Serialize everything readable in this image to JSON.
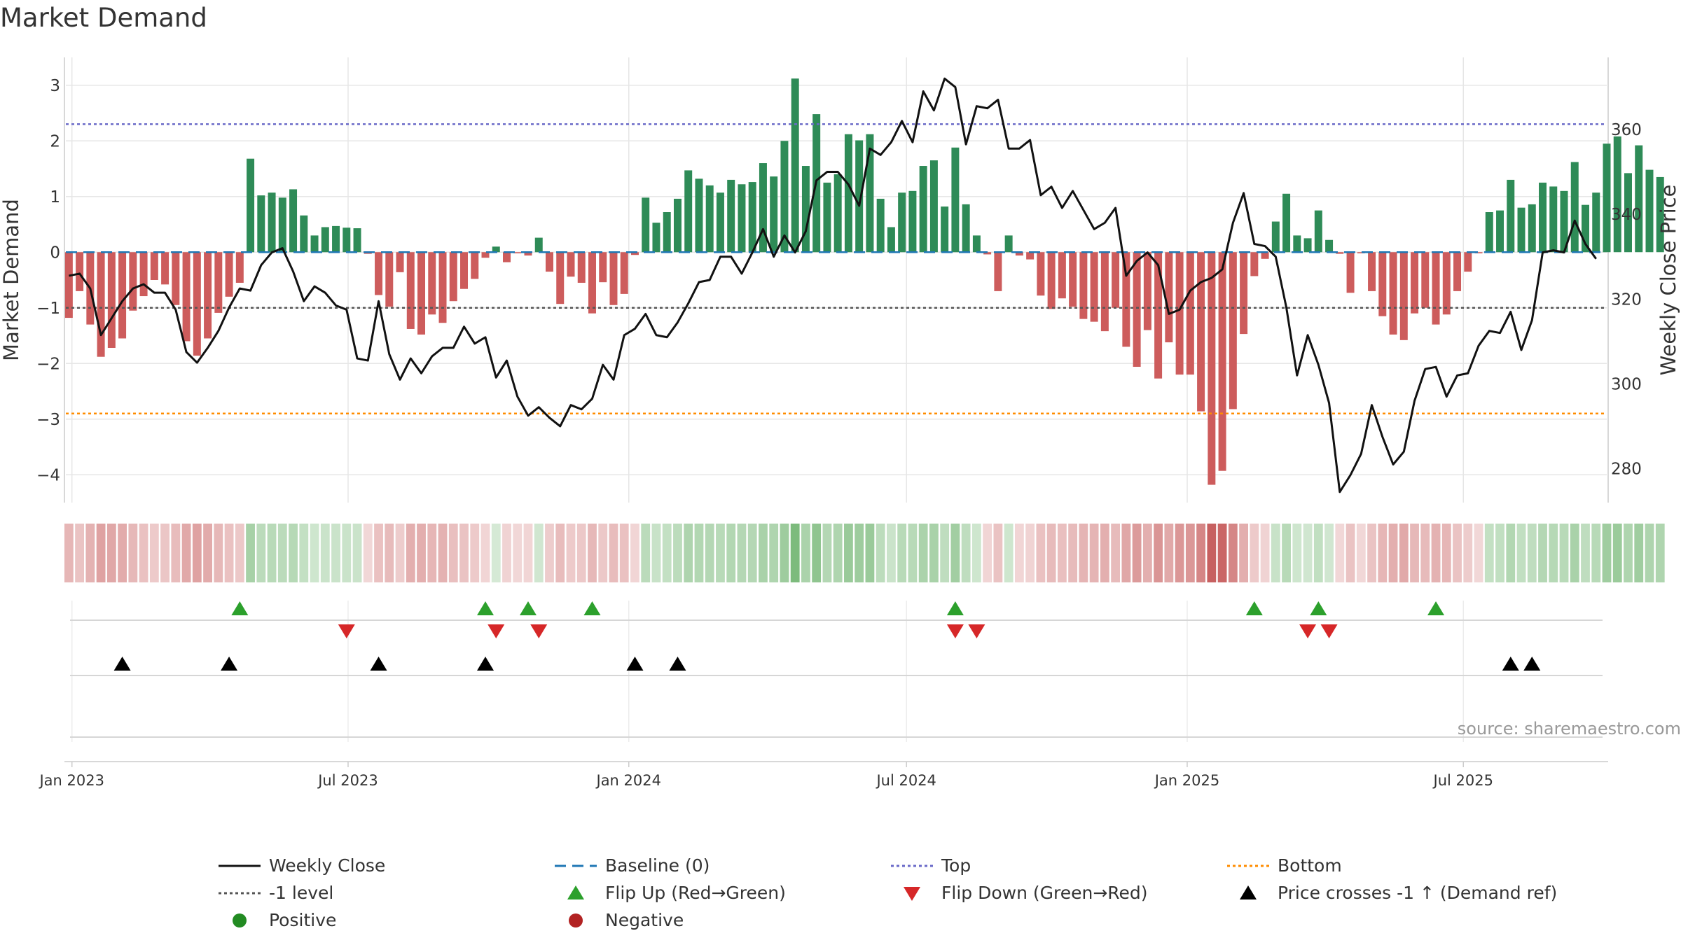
{
  "chart_data": {
    "type": "bar",
    "title": "Market Demand",
    "ylabel": "Market Demand",
    "y2label": "Weekly Close Price",
    "ylim": [
      -4.5,
      3.5
    ],
    "y2lim": [
      272,
      377
    ],
    "yticks": [
      3,
      2,
      1,
      0,
      -1,
      -2,
      -3,
      -4
    ],
    "y2ticks": [
      360,
      340,
      320,
      300,
      280
    ],
    "x_start": "2022-12-28",
    "x_end": "2025-10-03",
    "xticks": [
      {
        "label": "Jan 2023",
        "date": "2023-01-01"
      },
      {
        "label": "Jul 2023",
        "date": "2023-07-01"
      },
      {
        "label": "Jan 2024",
        "date": "2024-01-01"
      },
      {
        "label": "Jul 2024",
        "date": "2024-07-01"
      },
      {
        "label": "Jan 2025",
        "date": "2025-01-01"
      },
      {
        "label": "Jul 2025",
        "date": "2025-07-01"
      }
    ],
    "levels": {
      "top": 2.3,
      "minus_one": -1,
      "bottom": -2.9,
      "baseline": 0
    },
    "series": [
      {
        "name": "Market Demand",
        "start_date": "2022-12-30",
        "interval_days": 7,
        "values": [
          -1.18,
          -0.7,
          -1.3,
          -1.88,
          -1.72,
          -1.55,
          -1.05,
          -0.79,
          -0.5,
          -0.58,
          -0.95,
          -1.6,
          -1.86,
          -1.55,
          -1.09,
          -0.8,
          -0.55,
          1.68,
          1.02,
          1.07,
          0.98,
          1.13,
          0.66,
          0.3,
          0.45,
          0.47,
          0.44,
          0.43,
          -0.03,
          -0.77,
          -0.98,
          -0.36,
          -1.38,
          -1.48,
          -1.12,
          -1.27,
          -0.88,
          -0.66,
          -0.48,
          -0.1,
          0.1,
          -0.18,
          -0.02,
          -0.06,
          0.26,
          -0.35,
          -0.93,
          -0.44,
          -0.55,
          -1.1,
          -0.54,
          -0.95,
          -0.75,
          -0.05,
          0.98,
          0.53,
          0.72,
          0.96,
          1.47,
          1.32,
          1.2,
          1.07,
          1.3,
          1.22,
          1.26,
          1.6,
          1.36,
          2.0,
          3.12,
          1.55,
          2.48,
          1.25,
          1.4,
          2.12,
          2.01,
          2.12,
          0.96,
          0.45,
          1.07,
          1.1,
          1.55,
          1.65,
          0.82,
          1.88,
          0.86,
          0.3,
          -0.04,
          -0.7,
          0.3,
          -0.06,
          -0.13,
          -0.78,
          -1.02,
          -0.83,
          -0.98,
          -1.2,
          -1.25,
          -1.42,
          -1.0,
          -1.7,
          -2.06,
          -1.4,
          -2.27,
          -1.62,
          -2.2,
          -2.2,
          -2.86,
          -4.18,
          -3.93,
          -2.82,
          -1.47,
          -0.43,
          -0.12,
          0.55,
          1.05,
          0.3,
          0.25,
          0.75,
          0.22,
          -0.03,
          -0.73,
          -0.02,
          -0.7,
          -1.15,
          -1.48,
          -1.58,
          -1.1,
          -1.0,
          -1.3,
          -1.12,
          -0.7,
          -0.35,
          -0.02,
          0.72,
          0.75,
          1.3,
          0.8,
          0.86,
          1.25,
          1.18,
          1.1,
          1.62,
          0.85,
          1.07,
          1.95,
          2.08,
          1.42,
          1.92,
          1.48,
          1.35
        ]
      },
      {
        "name": "Weekly Close",
        "start_date": "2022-12-30",
        "interval_days": 7,
        "values": [
          325.5,
          326,
          322.5,
          311.5,
          315.5,
          319.5,
          322.5,
          323.5,
          321.5,
          321.5,
          317.5,
          307.5,
          305,
          308.5,
          312.5,
          318,
          322.5,
          322,
          328,
          331,
          332,
          326.5,
          319.5,
          323,
          321.5,
          318.5,
          317.5,
          306,
          305.5,
          319.5,
          307,
          301,
          306,
          302.5,
          306.5,
          308.5,
          308.5,
          313.5,
          309.5,
          311,
          301.5,
          305.5,
          297,
          292.5,
          294.5,
          292,
          290,
          295,
          294,
          296.5,
          304.5,
          301,
          311.5,
          313,
          316.5,
          311.5,
          311,
          314.5,
          319,
          324,
          324.5,
          330,
          330,
          326,
          331,
          336.5,
          330,
          335,
          331,
          336,
          348,
          350,
          350,
          347,
          342,
          355.5,
          354,
          357,
          362,
          357,
          369,
          364.5,
          372,
          370,
          356.5,
          365.5,
          365,
          367,
          355.5,
          355.5,
          357.5,
          344.5,
          346.5,
          341.5,
          345.5,
          341,
          336.5,
          338,
          341.5,
          325.5,
          329,
          331,
          328,
          316.5,
          317.5,
          322,
          324,
          325,
          327,
          338,
          345,
          333,
          332.5,
          330,
          318,
          302,
          311.5,
          304.5,
          295.5,
          274.5,
          278.5,
          283.5,
          295,
          287.5,
          281,
          284,
          296,
          303.5,
          304,
          297,
          302,
          302.5,
          309,
          312.5,
          312,
          317,
          308,
          315,
          331,
          331.5,
          331,
          338.5,
          333,
          329.5
        ]
      }
    ],
    "strip": {
      "label": "Positive / Negative demand strip",
      "colors": {
        "positive": "#228b22",
        "negative": "#b22222"
      }
    },
    "markers": {
      "flip_up": [
        "2023-04-21",
        "2023-09-29",
        "2023-10-27",
        "2023-12-08",
        "2024-08-02",
        "2025-02-14",
        "2025-03-28",
        "2025-06-13"
      ],
      "flip_down": [
        "2023-06-30",
        "2023-10-06",
        "2023-11-03",
        "2024-08-02",
        "2024-08-16",
        "2025-03-21",
        "2025-04-04"
      ],
      "price_cross": [
        "2023-02-03",
        "2023-04-14",
        "2023-07-21",
        "2023-09-29",
        "2024-01-05",
        "2024-02-02",
        "2025-08-01",
        "2025-08-15"
      ]
    },
    "source_label": "source: sharemaestro.com",
    "legend": [
      {
        "label": "Weekly Close",
        "kind": "line",
        "color": "#111111"
      },
      {
        "label": "Baseline (0)",
        "kind": "dash",
        "color": "#1f77b4"
      },
      {
        "label": "Top",
        "kind": "dot",
        "color": "#6a6ac8"
      },
      {
        "label": "Bottom",
        "kind": "dot",
        "color": "#ff8c00"
      },
      {
        "label": "-1 level",
        "kind": "dot",
        "color": "#555555"
      },
      {
        "label": "Flip Up (Red→Green)",
        "kind": "tri-up",
        "color": "#2ca02c"
      },
      {
        "label": "Flip Down (Green→Red)",
        "kind": "tri-down",
        "color": "#d62728"
      },
      {
        "label": "Price crosses -1 ↑ (Demand ref)",
        "kind": "tri-up",
        "color": "#000000"
      },
      {
        "label": "Positive",
        "kind": "circle",
        "color": "#228b22"
      },
      {
        "label": "Negative",
        "kind": "circle",
        "color": "#b22222"
      }
    ],
    "colors": {
      "positive_bar": "#2e8b57",
      "negative_bar": "#cd5c5c",
      "grid": "#e6e6e6"
    }
  }
}
